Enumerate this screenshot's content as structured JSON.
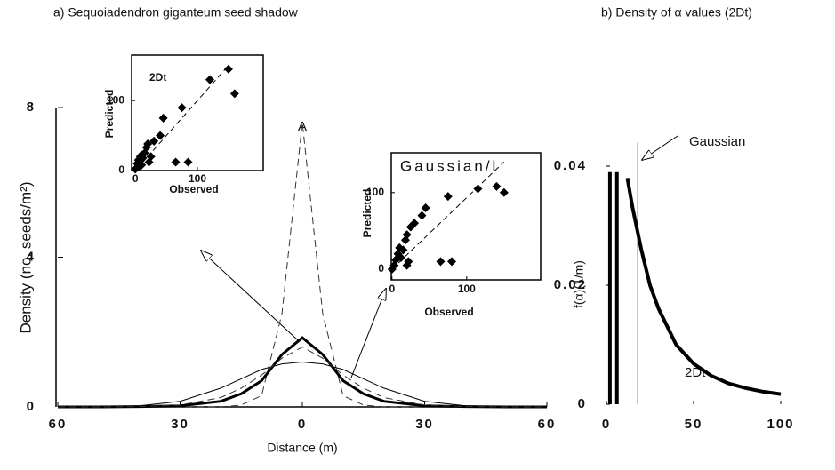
{
  "chart_data": [
    {
      "type": "line",
      "title": "a) Sequoiadendron giganteum seed shadow",
      "x_label": "Distance (m)",
      "y_label": "Density (no. seeds/m²)",
      "annotations": [
        "A"
      ],
      "x": [
        -60,
        -50,
        -40,
        -30,
        -20,
        -15,
        -10,
        -5,
        0,
        5,
        10,
        15,
        20,
        30,
        40,
        50,
        60
      ],
      "series": [
        {
          "color": "#333333",
          "dash": true,
          "width": 1,
          "values": [
            0,
            0,
            0,
            0,
            0,
            0.05,
            0.3,
            2.5,
            7.6,
            2.5,
            0.3,
            0.05,
            0,
            0,
            0,
            0,
            0
          ]
        },
        {
          "color": "#000000",
          "dash": false,
          "width": 3,
          "values": [
            0,
            0,
            0.01,
            0.03,
            0.15,
            0.35,
            0.7,
            1.4,
            1.85,
            1.4,
            0.7,
            0.35,
            0.15,
            0.03,
            0.01,
            0,
            0
          ]
        },
        {
          "color": "#000000",
          "dash": false,
          "width": 1,
          "values": [
            0,
            0.01,
            0.03,
            0.15,
            0.5,
            0.75,
            1.0,
            1.15,
            1.2,
            1.15,
            1.0,
            0.75,
            0.5,
            0.15,
            0.03,
            0.01,
            0
          ]
        },
        {
          "color": "#333333",
          "dash": true,
          "width": 1,
          "values": [
            0,
            0,
            0.01,
            0.05,
            0.25,
            0.5,
            0.85,
            1.3,
            1.6,
            1.3,
            0.85,
            0.5,
            0.25,
            0.05,
            0.01,
            0,
            0
          ]
        }
      ],
      "xlim": [
        -60,
        60
      ],
      "ylim": [
        0,
        8.5
      ],
      "xticks": [
        {
          "value": -60,
          "label": "60"
        },
        {
          "value": -30,
          "label": "30"
        },
        0,
        30,
        60
      ],
      "yticks": [
        0,
        4,
        8
      ]
    },
    {
      "type": "scatter",
      "title": "2Dt",
      "x_label": "Observed",
      "y_label": "Predicted",
      "x": [
        0,
        3,
        5,
        8,
        10,
        12,
        15,
        18,
        20,
        22,
        25,
        30,
        40,
        45,
        65,
        75,
        85,
        120,
        150,
        160,
        10,
        5
      ],
      "values": [
        2,
        10,
        15,
        20,
        22,
        18,
        25,
        33,
        38,
        12,
        20,
        42,
        50,
        75,
        12,
        90,
        12,
        130,
        145,
        110,
        8,
        5
      ],
      "color": "#000000",
      "reference": {
        "x": [
          0,
          150
        ],
        "values": [
          0,
          150
        ]
      },
      "xlim": [
        -6,
        206
      ],
      "ylim": [
        0,
        165
      ],
      "xticks": [
        0,
        100
      ],
      "yticks": [
        0,
        100
      ]
    },
    {
      "type": "scatter",
      "title": "Gaussian/l",
      "x_label": "Observed",
      "y_label": "Predicted",
      "x": [
        0,
        3,
        5,
        8,
        10,
        12,
        15,
        18,
        20,
        22,
        25,
        30,
        40,
        45,
        20,
        65,
        75,
        80,
        115,
        140,
        150
      ],
      "values": [
        0,
        5,
        12,
        20,
        28,
        15,
        25,
        38,
        45,
        10,
        55,
        60,
        70,
        80,
        5,
        10,
        95,
        10,
        105,
        108,
        100
      ],
      "color": "#000000",
      "reference": {
        "x": [
          0,
          150
        ],
        "values": [
          0,
          140
        ]
      },
      "xlim": [
        -1,
        199
      ],
      "ylim": [
        -14,
        152
      ],
      "xticks": [
        0,
        100
      ],
      "yticks": [
        0,
        100
      ]
    },
    {
      "type": "line",
      "title": "b) Density of α values (2Dt)",
      "y_label": "f(α)(1/m)",
      "annotations": [
        "Gaussian",
        "2Dt"
      ],
      "x": [
        12,
        15,
        20,
        25,
        30,
        40,
        50,
        60,
        70,
        80,
        90,
        100
      ],
      "series": [
        {
          "color": "#000000",
          "dash": false,
          "width": 4,
          "values": [
            0.038,
            0.033,
            0.026,
            0.02,
            0.016,
            0.01,
            0.0068,
            0.0048,
            0.0035,
            0.0027,
            0.0021,
            0.0017
          ]
        }
      ],
      "spikes": {
        "x": [
          2,
          6,
          18
        ],
        "values": [
          0.039,
          0.039,
          0.044
        ],
        "widths": [
          4,
          4,
          1
        ]
      },
      "xlim": [
        0,
        100
      ],
      "ylim": [
        0,
        0.045
      ],
      "xticks": [
        0,
        50,
        100
      ],
      "yticks": [
        0,
        0.02,
        0.04
      ]
    }
  ]
}
